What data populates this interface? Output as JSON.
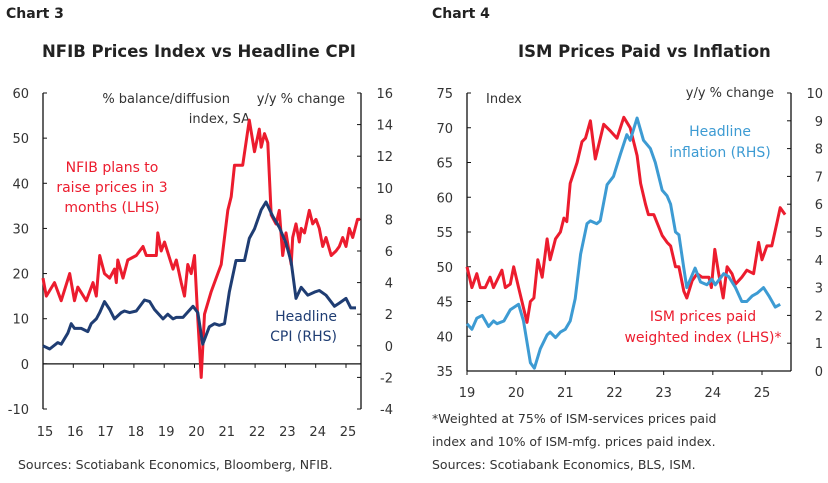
{
  "charts_meta": [
    {
      "label": "Chart 3",
      "title": "NFIB Prices Index vs Headline CPI",
      "sources": "Sources: Scotiabank Economics, Bloomberg, NFIB."
    },
    {
      "label": "Chart 4",
      "title": "ISM Prices Paid vs Inflation",
      "footnote1": "*Weighted at 75% of ISM-services prices paid",
      "footnote2": "index and 10% of ISM-mfg. prices paid index.",
      "sources": "Sources: Scotiabank Economics, BLS, ISM."
    }
  ],
  "chart_data": [
    {
      "type": "line",
      "title": "NFIB Prices Index vs Headline CPI",
      "ylabel_left": [
        "% balance/diffusion",
        "index, SA"
      ],
      "ylabel_right": "y/y % change",
      "xlim": [
        2015,
        2025.5
      ],
      "ylim_left": [
        -10,
        60
      ],
      "ylim_right": [
        -4,
        16
      ],
      "xticks": [
        2015,
        2016,
        2017,
        2018,
        2019,
        2020,
        2021,
        2022,
        2023,
        2024,
        2025
      ],
      "xtick_labels": [
        "15",
        "16",
        "17",
        "18",
        "19",
        "20",
        "21",
        "22",
        "23",
        "24",
        "25"
      ],
      "yticks_left": [
        60,
        50,
        40,
        30,
        20,
        10,
        0,
        -10
      ],
      "yticks_right": [
        16,
        14,
        12,
        10,
        8,
        6,
        4,
        2,
        0,
        -2,
        -4
      ],
      "grid": false,
      "colors": {
        "nfib": "#ec1c2e",
        "cpi": "#1f3d73"
      },
      "series": [
        {
          "name": "NFIB plans to raise prices in 3 months (LHS)",
          "axis": "left",
          "color": "#ec1c2e",
          "label_lines": [
            "NFIB plans to",
            "raise prices in 3",
            "months (LHS)"
          ],
          "x": [
            2015.0,
            2015.11,
            2015.38,
            2015.6,
            2015.88,
            2016.04,
            2016.15,
            2016.43,
            2016.65,
            2016.76,
            2016.87,
            2017.03,
            2017.2,
            2017.36,
            2017.42,
            2017.47,
            2017.64,
            2017.8,
            2018.08,
            2018.3,
            2018.41,
            2018.74,
            2018.79,
            2018.9,
            2019.01,
            2019.29,
            2019.4,
            2019.56,
            2019.67,
            2019.78,
            2019.89,
            2020.0,
            2020.11,
            2020.22,
            2020.33,
            2020.55,
            2020.77,
            2020.88,
            2021.1,
            2021.21,
            2021.32,
            2021.59,
            2021.81,
            2021.98,
            2022.14,
            2022.2,
            2022.31,
            2022.42,
            2022.53,
            2022.69,
            2022.8,
            2022.91,
            2023.02,
            2023.19,
            2023.24,
            2023.35,
            2023.46,
            2023.52,
            2023.63,
            2023.79,
            2023.9,
            2024.01,
            2024.12,
            2024.23,
            2024.34,
            2024.51,
            2024.67,
            2024.78,
            2024.89,
            2025.0,
            2025.11,
            2025.22,
            2025.38,
            2025.47
          ],
          "y": [
            19,
            15,
            18,
            14,
            20,
            14,
            17,
            14,
            18,
            15,
            24,
            20,
            19,
            21,
            18,
            23,
            19,
            23,
            24,
            26,
            24,
            24,
            29,
            25,
            27,
            21,
            23,
            18,
            15,
            22,
            20,
            24,
            10,
            -3,
            11,
            16,
            20,
            22,
            34,
            37,
            44,
            44,
            54,
            47,
            52,
            48,
            51,
            49,
            33,
            31,
            34,
            24,
            29,
            22,
            28,
            31,
            27,
            30,
            29,
            34,
            31,
            32,
            30,
            26,
            28,
            24,
            25,
            26,
            28,
            26,
            30,
            28,
            32,
            32
          ]
        },
        {
          "name": "Headline CPI (RHS)",
          "axis": "right",
          "color": "#1f3d73",
          "label_lines": [
            "Headline",
            "CPI (RHS)"
          ],
          "x": [
            2015.0,
            2015.22,
            2015.49,
            2015.6,
            2015.82,
            2015.93,
            2016.04,
            2016.26,
            2016.48,
            2016.59,
            2016.76,
            2016.87,
            2017.03,
            2017.2,
            2017.36,
            2017.58,
            2017.69,
            2017.86,
            2018.08,
            2018.35,
            2018.52,
            2018.68,
            2018.96,
            2019.12,
            2019.29,
            2019.4,
            2019.62,
            2019.95,
            2020.11,
            2020.27,
            2020.49,
            2020.66,
            2020.82,
            2020.99,
            2021.15,
            2021.37,
            2021.65,
            2021.81,
            2021.98,
            2022.2,
            2022.36,
            2022.58,
            2022.8,
            2023.02,
            2023.19,
            2023.35,
            2023.52,
            2023.74,
            2023.96,
            2024.12,
            2024.34,
            2024.62,
            2024.78,
            2025.0,
            2025.16,
            2025.33
          ],
          "y": [
            0,
            -0.2,
            0.2,
            0.1,
            0.8,
            1.4,
            1.1,
            1.1,
            0.9,
            1.4,
            1.7,
            2.1,
            2.8,
            2.3,
            1.7,
            2.1,
            2.2,
            2.1,
            2.2,
            2.9,
            2.8,
            2.3,
            1.7,
            2.0,
            1.7,
            1.8,
            1.8,
            2.5,
            2.1,
            0.1,
            1.2,
            1.4,
            1.3,
            1.4,
            3.4,
            5.4,
            5.4,
            6.8,
            7.4,
            8.6,
            9.1,
            8.2,
            7.5,
            6.5,
            5.3,
            3.0,
            3.7,
            3.2,
            3.4,
            3.5,
            3.2,
            2.5,
            2.7,
            3.0,
            2.4,
            2.4
          ]
        }
      ]
    },
    {
      "type": "line",
      "title": "ISM Prices Paid vs Inflation",
      "ylabel_left": "Index",
      "ylabel_right": "y/y % change",
      "xlim": [
        2019,
        2025.6
      ],
      "ylim_left": [
        35,
        75
      ],
      "ylim_right": [
        0,
        10
      ],
      "xticks": [
        2019,
        2020,
        2021,
        2022,
        2023,
        2024,
        2025
      ],
      "xtick_labels": [
        "19",
        "20",
        "21",
        "22",
        "23",
        "24",
        "25"
      ],
      "yticks_left": [
        75,
        70,
        65,
        60,
        55,
        50,
        45,
        40,
        35
      ],
      "yticks_right": [
        10,
        9,
        8,
        7,
        6,
        5,
        4,
        3,
        2,
        1,
        0
      ],
      "grid": false,
      "colors": {
        "ism": "#ec1c2e",
        "inflation": "#3d9bd3"
      },
      "series": [
        {
          "name": "ISM prices paid weighted index (LHS)*",
          "axis": "left",
          "color": "#ec1c2e",
          "label_lines": [
            "ISM prices paid",
            "weighted index (LHS)*"
          ],
          "x": [
            2019.0,
            2019.1,
            2019.2,
            2019.27,
            2019.37,
            2019.47,
            2019.54,
            2019.71,
            2019.78,
            2019.88,
            2019.95,
            2020.05,
            2020.22,
            2020.29,
            2020.36,
            2020.44,
            2020.53,
            2020.63,
            2020.69,
            2020.8,
            2020.9,
            2020.97,
            2021.03,
            2021.1,
            2021.24,
            2021.34,
            2021.41,
            2021.51,
            2021.61,
            2021.78,
            2021.92,
            2022.05,
            2022.19,
            2022.32,
            2022.46,
            2022.53,
            2022.63,
            2022.69,
            2022.8,
            2022.97,
            2023.07,
            2023.14,
            2023.24,
            2023.31,
            2023.41,
            2023.47,
            2023.58,
            2023.68,
            2023.78,
            2023.92,
            2023.97,
            2024.04,
            2024.12,
            2024.21,
            2024.29,
            2024.39,
            2024.46,
            2024.59,
            2024.69,
            2024.83,
            2024.93,
            2025.0,
            2025.1,
            2025.2,
            2025.31,
            2025.37,
            2025.47
          ],
          "y": [
            50,
            47,
            49,
            47,
            47,
            48.5,
            47,
            49.5,
            47,
            47.5,
            50,
            47,
            42,
            45,
            45.5,
            51,
            48.5,
            54,
            51,
            54,
            55,
            57,
            56.5,
            62,
            65,
            68,
            68.5,
            71,
            65.5,
            70.5,
            69.5,
            68.5,
            71.5,
            70,
            66,
            62,
            59,
            57.5,
            57.5,
            54.5,
            53.5,
            53,
            50,
            50,
            46.5,
            45.5,
            48,
            49,
            48.5,
            48.5,
            47,
            52.5,
            49,
            45.5,
            50,
            49,
            47.5,
            48.5,
            49.5,
            49,
            53.5,
            51,
            53,
            53,
            56.5,
            58.5,
            57.5
          ]
        },
        {
          "name": "Headline inflation (RHS)",
          "axis": "right",
          "color": "#3d9bd3",
          "label_lines": [
            "Headline",
            "inflation (RHS)"
          ],
          "x": [
            2019.0,
            2019.1,
            2019.2,
            2019.31,
            2019.44,
            2019.54,
            2019.61,
            2019.75,
            2019.88,
            2020.05,
            2020.15,
            2020.29,
            2020.37,
            2020.49,
            2020.63,
            2020.69,
            2020.8,
            2020.9,
            2021.0,
            2021.1,
            2021.2,
            2021.31,
            2021.44,
            2021.51,
            2021.64,
            2021.71,
            2021.85,
            2021.98,
            2022.12,
            2022.25,
            2022.32,
            2022.46,
            2022.59,
            2022.73,
            2022.83,
            2022.97,
            2023.07,
            2023.14,
            2023.24,
            2023.31,
            2023.41,
            2023.47,
            2023.64,
            2023.75,
            2023.88,
            2023.98,
            2024.05,
            2024.22,
            2024.32,
            2024.46,
            2024.59,
            2024.69,
            2024.8,
            2024.9,
            2025.03,
            2025.14,
            2025.27,
            2025.37
          ],
          "y": [
            1.7,
            1.5,
            1.9,
            2.0,
            1.6,
            1.8,
            1.7,
            1.8,
            2.2,
            2.4,
            1.8,
            0.3,
            0.1,
            0.8,
            1.3,
            1.4,
            1.2,
            1.4,
            1.5,
            1.8,
            2.6,
            4.2,
            5.3,
            5.4,
            5.3,
            5.4,
            6.7,
            7.0,
            7.8,
            8.5,
            8.3,
            9.1,
            8.3,
            8.0,
            7.5,
            6.5,
            6.3,
            6.0,
            5.0,
            4.9,
            3.7,
            3.0,
            3.7,
            3.2,
            3.1,
            3.3,
            3.1,
            3.5,
            3.4,
            3.0,
            2.5,
            2.5,
            2.7,
            2.8,
            3.0,
            2.7,
            2.3,
            2.4
          ]
        }
      ]
    }
  ]
}
